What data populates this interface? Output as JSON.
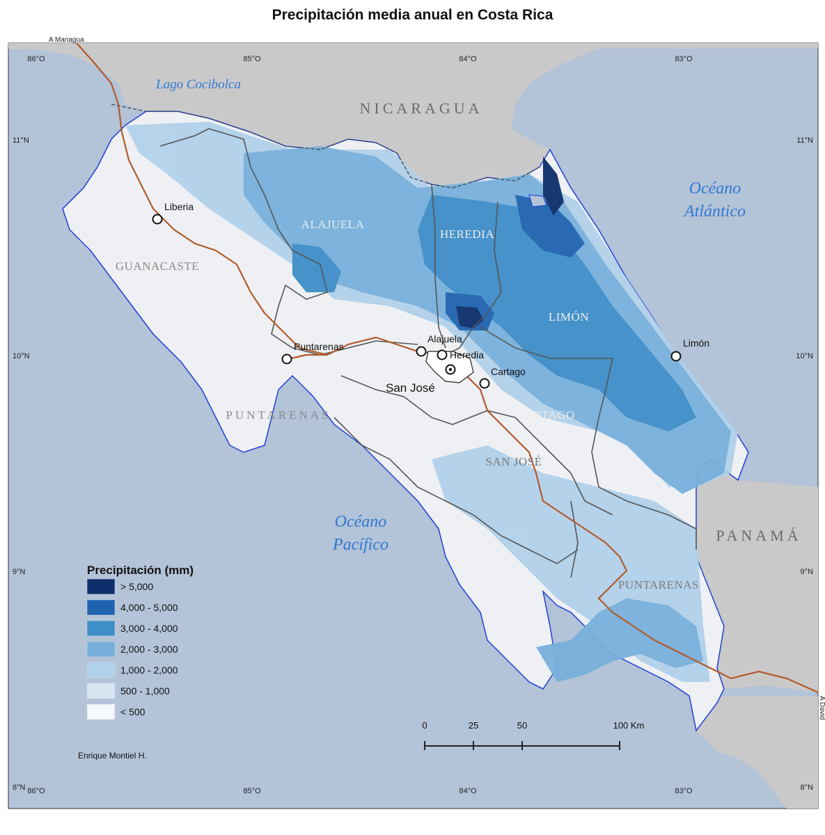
{
  "title": "Precipitación media anual en Costa Rica",
  "colors": {
    "sea": "#b3c3d8",
    "neighbor": "#c9c9c9",
    "land": "#eef0f3",
    "coast": "#1f3fd6",
    "road": "#b25a2a",
    "border": "#555555"
  },
  "coords": {
    "lon_top": [
      "86°O",
      "85°O",
      "84°O",
      "83°O"
    ],
    "lon_bottom": [
      "86°O",
      "85°O",
      "84°O",
      "83°O"
    ],
    "lat_left": [
      "11°N",
      "10°N",
      "9°N",
      "8°N"
    ],
    "lat_right": [
      "11°N",
      "10°N",
      "9°N",
      "8°N"
    ]
  },
  "road_notes": {
    "north": "A Managua",
    "south": "A David"
  },
  "countries": {
    "nicaragua": "NICARAGUA",
    "panama": "PANAMÁ"
  },
  "water": {
    "lake": "Lago Cocibolca",
    "atlantic_1": "Océano",
    "atlantic_2": "Atlántico",
    "pacific_1": "Océano",
    "pacific_2": "Pacífico"
  },
  "provinces": {
    "alajuela": "ALAJUELA",
    "heredia": "HEREDIA",
    "guanacaste": "GUANACASTE",
    "limon": "LIMÓN",
    "puntarenas_n": "PUNTARENAS",
    "cartago": "CARTAGO",
    "san_jose": "SAN JOSÉ",
    "puntarenas_s": "PUNTARENAS"
  },
  "cities": {
    "liberia": "Liberia",
    "puntarenas": "Puntarenas",
    "alajuela": "Alajuela",
    "heredia": "Heredia",
    "cartago": "Cartago",
    "san_jose": "San José",
    "limon": "Limón"
  },
  "legend": {
    "title": "Precipitación (mm)",
    "classes": [
      {
        "label": "> 5,000",
        "color": "#0d2f6b"
      },
      {
        "label": "4,000 - 5,000",
        "color": "#1f63b0"
      },
      {
        "label": "3,000 - 4,000",
        "color": "#3f8ec8"
      },
      {
        "label": "2,000 - 3,000",
        "color": "#77b0db"
      },
      {
        "label": "1,000 - 2,000",
        "color": "#b1d1ea"
      },
      {
        "label": "500 - 1,000",
        "color": "#d7e5f3"
      },
      {
        "label": "< 500",
        "color": "#f6f9fc"
      }
    ]
  },
  "scale_bar": {
    "ticks": [
      "0",
      "25",
      "50",
      "100 Km"
    ]
  },
  "author": "Enrique Montiel H."
}
